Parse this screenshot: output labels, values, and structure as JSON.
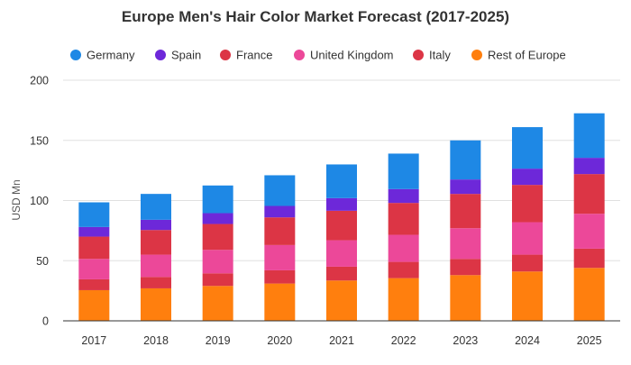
{
  "chart_data": {
    "type": "bar",
    "stacked": true,
    "title": "Europe Men's Hair Color Market Forecast (2017-2025)",
    "xlabel": "",
    "ylabel": "USD Mn",
    "ylim": [
      0,
      200
    ],
    "yticks": [
      0,
      50,
      100,
      150,
      200
    ],
    "grid": true,
    "legend_position": "top",
    "categories": [
      "2017",
      "2018",
      "2019",
      "2020",
      "2021",
      "2022",
      "2023",
      "2024",
      "2025"
    ],
    "series": [
      {
        "name": "Rest of Europe",
        "color": "#ff7f0e",
        "values": [
          25.5,
          27,
          29,
          31,
          33.5,
          35.5,
          38,
          41,
          44
        ]
      },
      {
        "name": "Italy",
        "color": "#dc3545",
        "values": [
          9,
          9.5,
          10.5,
          11,
          11.5,
          13.5,
          13.5,
          14,
          16
        ]
      },
      {
        "name": "United Kingdom",
        "color": "#ec4899",
        "values": [
          17,
          18.5,
          19.5,
          21,
          22,
          22.5,
          25.5,
          27,
          29
        ]
      },
      {
        "name": "France",
        "color": "#dc3545",
        "values": [
          18.5,
          20.5,
          21.5,
          23,
          24.5,
          26.5,
          28.5,
          31,
          33
        ]
      },
      {
        "name": "Spain",
        "color": "#6d28d9",
        "values": [
          8,
          8.5,
          9,
          9.5,
          10.5,
          11.5,
          12,
          13.5,
          13.5
        ]
      },
      {
        "name": "Germany",
        "color": "#1e88e5",
        "values": [
          20.5,
          21.5,
          23,
          25.5,
          28,
          29.5,
          32.5,
          34.5,
          37
        ]
      }
    ],
    "legend_order": [
      "Germany",
      "Spain",
      "France",
      "United Kingdom",
      "Italy",
      "Rest of Europe"
    ]
  }
}
